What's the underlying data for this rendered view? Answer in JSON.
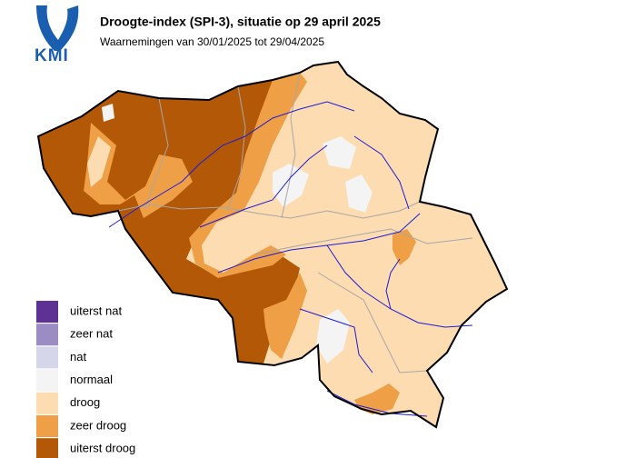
{
  "header": {
    "logo": "KMI",
    "title": "Droogte-index (SPI-3), situatie op 29 april 2025",
    "subtitle": "Waarnemingen van 30/01/2025 tot 29/04/2025"
  },
  "legend": [
    {
      "label": "uiterst nat",
      "color": "#5e3194"
    },
    {
      "label": "zeer nat",
      "color": "#9b8cc4"
    },
    {
      "label": "nat",
      "color": "#d6d6ea"
    },
    {
      "label": "normaal",
      "color": "#f4f4f4"
    },
    {
      "label": "droog",
      "color": "#fcdcb0"
    },
    {
      "label": "zeer droog",
      "color": "#ef9f45"
    },
    {
      "label": "uiterst droog",
      "color": "#b35806"
    }
  ]
}
